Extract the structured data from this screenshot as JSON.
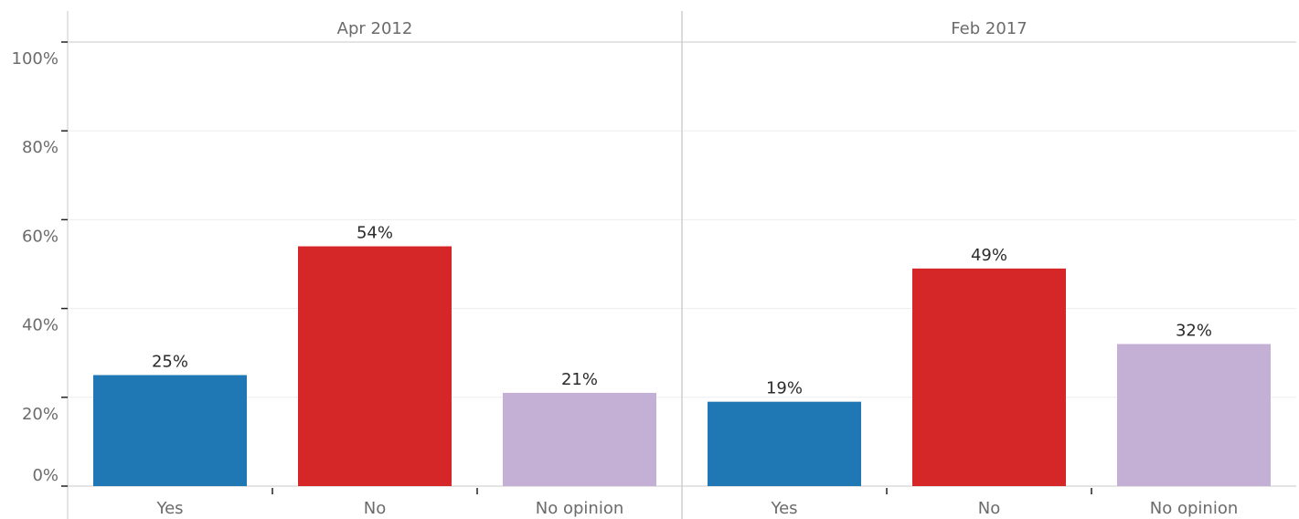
{
  "chart_data": {
    "type": "bar",
    "title": "",
    "xlabel": "",
    "ylabel": "",
    "ylim": [
      0,
      100
    ],
    "y_ticks": [
      0,
      20,
      40,
      60,
      80,
      100
    ],
    "y_tick_labels": [
      "0%",
      "20%",
      "40%",
      "60%",
      "80%",
      "100%"
    ],
    "grid": true,
    "categories": [
      "Yes",
      "No",
      "No opinion"
    ],
    "colors": {
      "Yes": "#1f77b4",
      "No": "#d62728",
      "No opinion": "#c5b0d5"
    },
    "panels": [
      {
        "title": "Apr 2012",
        "values": [
          25,
          54,
          21
        ],
        "labels": [
          "25%",
          "54%",
          "21%"
        ]
      },
      {
        "title": "Feb 2017",
        "values": [
          19,
          49,
          32
        ],
        "labels": [
          "19%",
          "49%",
          "32%"
        ]
      }
    ]
  }
}
